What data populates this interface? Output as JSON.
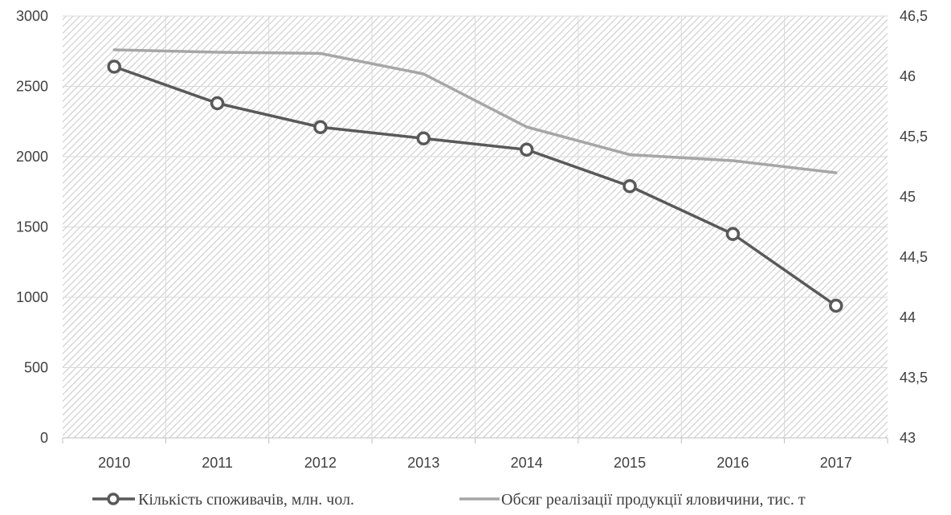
{
  "chart_data": {
    "type": "line",
    "categories": [
      "2010",
      "2011",
      "2012",
      "2013",
      "2014",
      "2015",
      "2016",
      "2017"
    ],
    "y_left": {
      "range": [
        0,
        3000
      ],
      "ticks": [
        0,
        500,
        1000,
        1500,
        2000,
        2500,
        3000
      ],
      "tick_labels": [
        "0",
        "500",
        "1000",
        "1500",
        "2000",
        "2500",
        "3000"
      ]
    },
    "y_right": {
      "range": [
        43,
        46.5
      ],
      "ticks": [
        43,
        43.5,
        44,
        44.5,
        45,
        45.5,
        46,
        46.5
      ],
      "tick_labels": [
        "43",
        "43,5",
        "44",
        "44,5",
        "45",
        "45,5",
        "46",
        "46,5"
      ]
    },
    "series": [
      {
        "name": "Кількість споживачів, млн. чол.",
        "axis": "left",
        "values": [
          2640,
          2380,
          2210,
          2130,
          2050,
          1790,
          1450,
          940
        ],
        "color": "#595959",
        "marker": "circle"
      },
      {
        "name": "Обсяг реалізації продукції яловичини, тис. т",
        "axis": "right",
        "values": [
          46.22,
          46.2,
          46.19,
          46.02,
          45.58,
          45.35,
          45.3,
          45.2
        ],
        "color": "#a6a6a6",
        "marker": "none"
      }
    ],
    "grid": true,
    "legend_position": "bottom"
  }
}
